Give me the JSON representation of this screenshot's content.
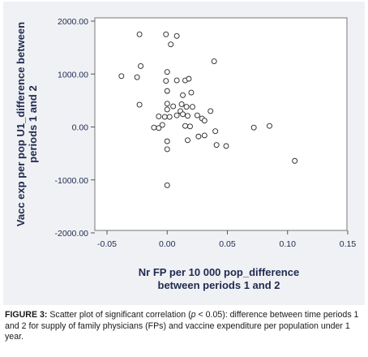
{
  "chart_data": {
    "type": "scatter",
    "title": "",
    "xlabel_lines": [
      "Nr FP per 10 000 pop_difference",
      "between periods 1 and 2"
    ],
    "ylabel_lines": [
      "Vacc exp per pop U1_difference between",
      "periods 1 and 2"
    ],
    "xlim": [
      -0.05,
      0.15
    ],
    "ylim": [
      -2000,
      2000
    ],
    "xticks": [
      -0.05,
      0.0,
      0.05,
      0.1,
      0.15
    ],
    "xtick_labels": [
      "-0.05",
      "0.00",
      "0.05",
      "0.10",
      "0.15"
    ],
    "yticks": [
      2000,
      1000,
      0,
      -1000,
      -2000
    ],
    "ytick_labels": [
      "2000.00",
      "1000.00",
      "0.00",
      "-1000.00",
      "-2000.00"
    ],
    "grid": false,
    "marker": "open-circle",
    "points": [
      {
        "x": -0.023,
        "y": 1750
      },
      {
        "x": -0.001,
        "y": 1750
      },
      {
        "x": 0.008,
        "y": 1720
      },
      {
        "x": 0.003,
        "y": 1560
      },
      {
        "x": -0.022,
        "y": 1150
      },
      {
        "x": -0.038,
        "y": 960
      },
      {
        "x": -0.025,
        "y": 940
      },
      {
        "x": 0.0,
        "y": 1040
      },
      {
        "x": -0.001,
        "y": 870
      },
      {
        "x": 0.008,
        "y": 880
      },
      {
        "x": 0.015,
        "y": 880
      },
      {
        "x": 0.018,
        "y": 910
      },
      {
        "x": 0.039,
        "y": 1240
      },
      {
        "x": 0.0,
        "y": 680
      },
      {
        "x": 0.02,
        "y": 650
      },
      {
        "x": 0.013,
        "y": 600
      },
      {
        "x": -0.023,
        "y": 420
      },
      {
        "x": 0.0,
        "y": 440
      },
      {
        "x": 0.005,
        "y": 390
      },
      {
        "x": 0.012,
        "y": 430
      },
      {
        "x": 0.016,
        "y": 380
      },
      {
        "x": 0.021,
        "y": 380
      },
      {
        "x": 0.0,
        "y": 330
      },
      {
        "x": 0.011,
        "y": 300
      },
      {
        "x": 0.036,
        "y": 300
      },
      {
        "x": -0.007,
        "y": 200
      },
      {
        "x": -0.002,
        "y": 190
      },
      {
        "x": 0.002,
        "y": 190
      },
      {
        "x": 0.008,
        "y": 220
      },
      {
        "x": 0.013,
        "y": 240
      },
      {
        "x": 0.017,
        "y": 210
      },
      {
        "x": 0.025,
        "y": 220
      },
      {
        "x": 0.029,
        "y": 160
      },
      {
        "x": 0.031,
        "y": 120
      },
      {
        "x": -0.011,
        "y": -10
      },
      {
        "x": -0.007,
        "y": -20
      },
      {
        "x": -0.004,
        "y": 40
      },
      {
        "x": 0.015,
        "y": 20
      },
      {
        "x": 0.019,
        "y": 10
      },
      {
        "x": 0.04,
        "y": -80
      },
      {
        "x": 0.072,
        "y": -10
      },
      {
        "x": 0.085,
        "y": 20
      },
      {
        "x": 0.026,
        "y": -180
      },
      {
        "x": 0.031,
        "y": -160
      },
      {
        "x": 0.017,
        "y": -250
      },
      {
        "x": 0.0,
        "y": -270
      },
      {
        "x": 0.0,
        "y": -420
      },
      {
        "x": 0.041,
        "y": -340
      },
      {
        "x": 0.049,
        "y": -360
      },
      {
        "x": 0.106,
        "y": -640
      },
      {
        "x": 0.0,
        "y": -1100
      }
    ]
  },
  "caption": {
    "label": "FIGURE 3:",
    "text_before_p": " Scatter plot of significant correlation (",
    "p_symbol": "p",
    "text_after_p": " < 0.05): difference between time periods 1 and 2 for supply of family physicians (FPs) and vaccine expenditure per population under 1 year."
  },
  "colors": {
    "frame_background": "#f0f1f4",
    "plot_background": "#ffffff",
    "axis_text": "#1e2a50",
    "marker_stroke": "#222222"
  }
}
